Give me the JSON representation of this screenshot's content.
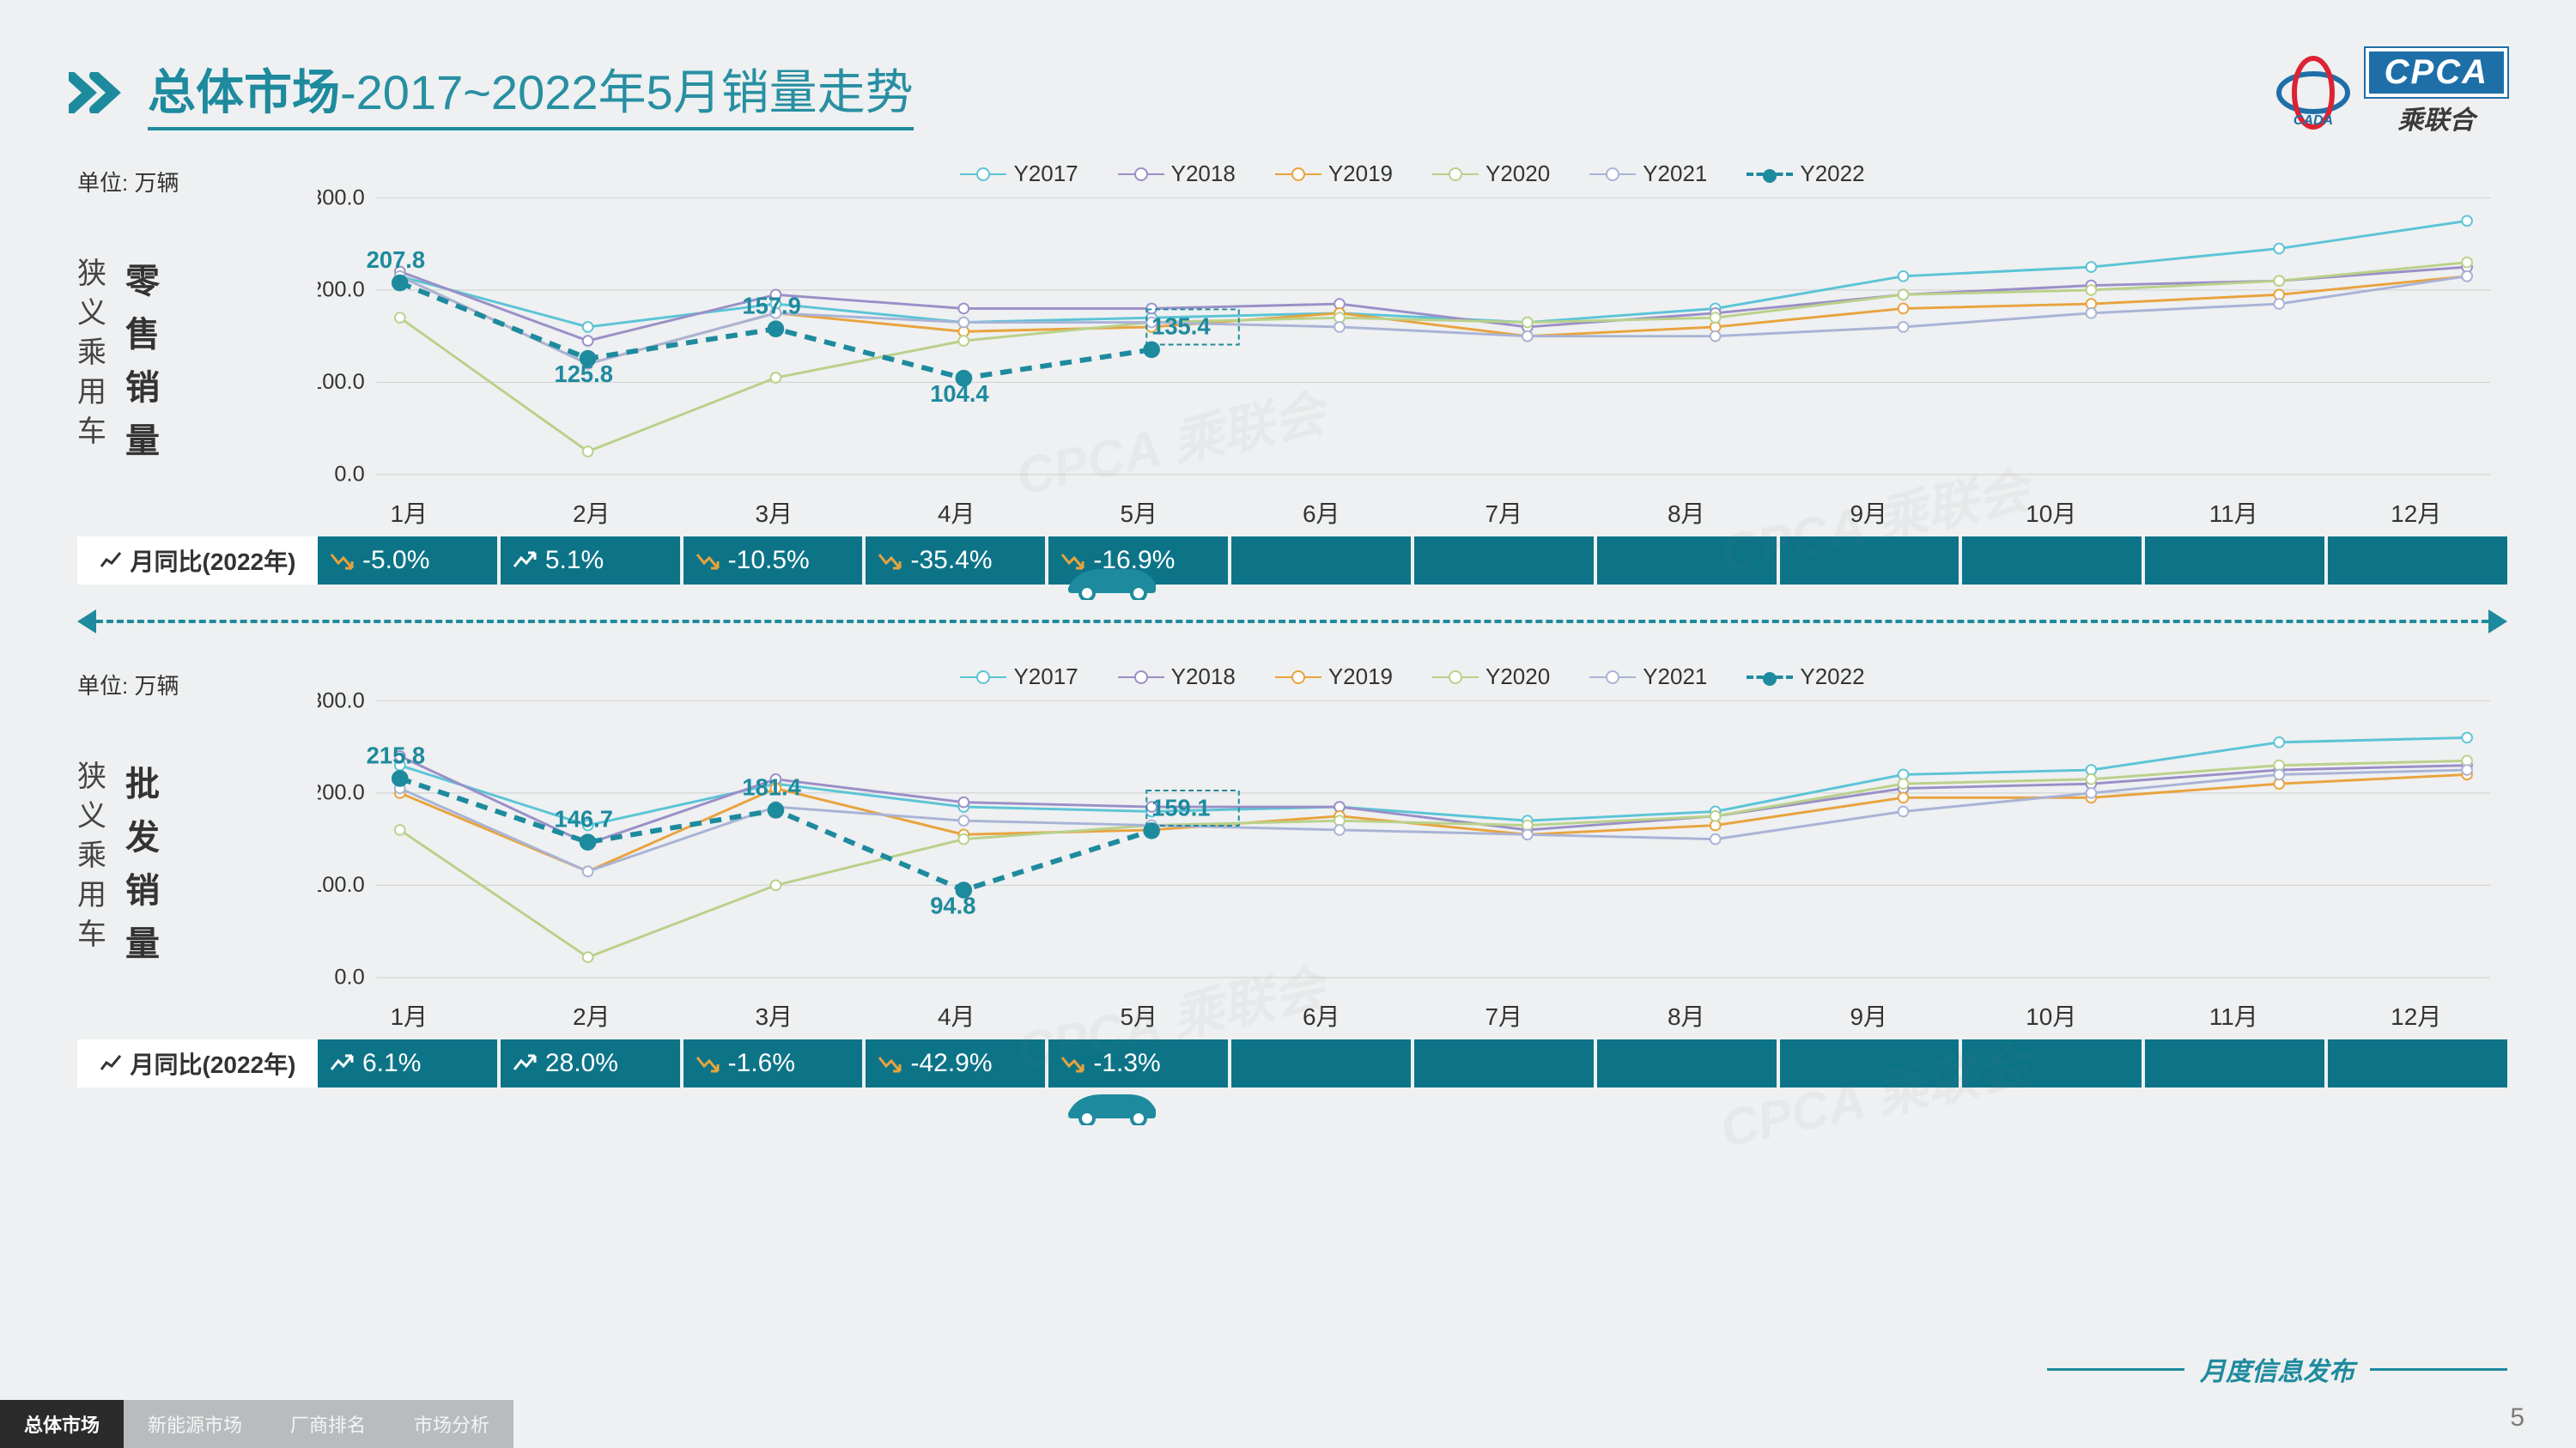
{
  "header": {
    "title_bold": "总体市场",
    "title_rest": "-2017~2022年5月销量走势",
    "logo_cpca": "CPCA",
    "logo_cpca_sub": "乘联合",
    "logo_cada": "CADA"
  },
  "colors": {
    "teal": "#1e8a9e",
    "teal_dark": "#0d7488",
    "orange": "#e8a33d",
    "grid": "#cfcfcf",
    "page_bg": "#eef0f1",
    "Y2017": "#5bc4d6",
    "Y2018": "#9a8fc7",
    "Y2019": "#e8a33d",
    "Y2020": "#b9d18a",
    "Y2021": "#a9b3d6",
    "Y2022": "#1e8a9e"
  },
  "legend_labels": [
    "Y2017",
    "Y2018",
    "Y2019",
    "Y2020",
    "Y2021",
    "Y2022"
  ],
  "months": [
    "1月",
    "2月",
    "3月",
    "4月",
    "5月",
    "6月",
    "7月",
    "8月",
    "9月",
    "10月",
    "11月",
    "12月"
  ],
  "axis": {
    "ymin": 0,
    "ymax": 300,
    "ystep": 100,
    "unit_label": "单位: 万辆",
    "tick_fontsize": 26
  },
  "chart_style": {
    "type": "line",
    "line_width": 3,
    "y2022_line_width": 6,
    "marker_radius": 6,
    "y2022_marker_radius": 9,
    "grid_dash": "none"
  },
  "charts": [
    {
      "side_small": "狭义乘用车",
      "side_big": "零售销量",
      "series": {
        "Y2017": [
          215,
          160,
          185,
          165,
          170,
          175,
          165,
          180,
          215,
          225,
          245,
          275
        ],
        "Y2018": [
          220,
          145,
          195,
          180,
          180,
          185,
          160,
          175,
          195,
          205,
          210,
          225
        ],
        "Y2019": [
          215,
          120,
          175,
          155,
          160,
          175,
          150,
          160,
          180,
          185,
          195,
          215
        ],
        "Y2020": [
          170,
          25,
          105,
          145,
          165,
          170,
          165,
          170,
          195,
          200,
          210,
          230
        ],
        "Y2021": [
          215,
          120,
          175,
          165,
          165,
          160,
          150,
          150,
          160,
          175,
          185,
          215
        ],
        "Y2022": [
          207.8,
          125.8,
          157.9,
          104.4,
          135.4
        ]
      },
      "y2022_labels": [
        {
          "m": 1,
          "v": 207.8,
          "text": "207.8",
          "dy": -18
        },
        {
          "m": 2,
          "v": 125.8,
          "text": "125.8",
          "dy": 28
        },
        {
          "m": 3,
          "v": 157.9,
          "text": "157.9",
          "dy": -18
        },
        {
          "m": 4,
          "v": 104.4,
          "text": "104.4",
          "dy": 28
        },
        {
          "m": 5,
          "v": 135.4,
          "text": "135.4",
          "dy": -18,
          "boxed": true
        }
      ],
      "yoy_label": "月同比(2022年)",
      "yoy": [
        {
          "dir": "down",
          "text": "-5.0%"
        },
        {
          "dir": "up",
          "text": "5.1%"
        },
        {
          "dir": "down",
          "text": "-10.5%"
        },
        {
          "dir": "down",
          "text": "-35.4%"
        },
        {
          "dir": "down",
          "text": "-16.9%"
        }
      ],
      "car_x_month": 5
    },
    {
      "side_small": "狭义乘用车",
      "side_big": "批发销量",
      "series": {
        "Y2017": [
          230,
          165,
          210,
          185,
          180,
          185,
          170,
          180,
          220,
          225,
          255,
          260
        ],
        "Y2018": [
          240,
          145,
          215,
          190,
          185,
          185,
          160,
          175,
          205,
          210,
          225,
          230
        ],
        "Y2019": [
          200,
          115,
          205,
          155,
          160,
          175,
          155,
          165,
          195,
          195,
          210,
          220
        ],
        "Y2020": [
          160,
          22,
          100,
          150,
          165,
          170,
          165,
          175,
          210,
          215,
          230,
          235
        ],
        "Y2021": [
          205,
          115,
          185,
          170,
          165,
          160,
          155,
          150,
          180,
          200,
          220,
          225
        ],
        "Y2022": [
          215.8,
          146.7,
          181.4,
          94.8,
          159.1
        ]
      },
      "y2022_labels": [
        {
          "m": 1,
          "v": 215.8,
          "text": "215.8",
          "dy": -18
        },
        {
          "m": 2,
          "v": 146.7,
          "text": "146.7",
          "dy": -18
        },
        {
          "m": 3,
          "v": 181.4,
          "text": "181.4",
          "dy": -18
        },
        {
          "m": 4,
          "v": 94.8,
          "text": "94.8",
          "dy": 28
        },
        {
          "m": 5,
          "v": 159.1,
          "text": "159.1",
          "dy": -18,
          "boxed": true
        }
      ],
      "yoy_label": "月同比(2022年)",
      "yoy": [
        {
          "dir": "up",
          "text": "6.1%"
        },
        {
          "dir": "up",
          "text": "28.0%"
        },
        {
          "dir": "down",
          "text": "-1.6%"
        },
        {
          "dir": "down",
          "text": "-42.9%"
        },
        {
          "dir": "down",
          "text": "-1.3%"
        }
      ],
      "car_x_month": 5
    }
  ],
  "footer": {
    "right_text": "月度信息发布",
    "page_num": "5",
    "tabs": [
      {
        "label": "总体市场",
        "active": true
      },
      {
        "label": "新能源市场",
        "active": false
      },
      {
        "label": "厂商排名",
        "active": false
      },
      {
        "label": "市场分析",
        "active": false
      }
    ]
  }
}
